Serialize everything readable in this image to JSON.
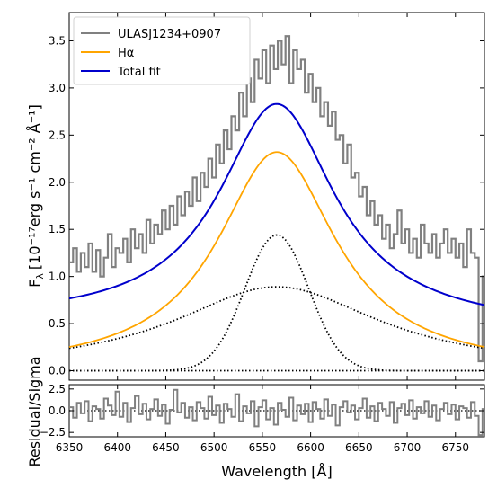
{
  "chart_data": {
    "type": "line",
    "x_range": [
      6350,
      6780
    ],
    "xlabel": "Wavelength [Å]",
    "x_ticks": [
      6350,
      6400,
      6450,
      6500,
      6550,
      6600,
      6650,
      6700,
      6750
    ],
    "main": {
      "ylabel_prefix": "F",
      "ylabel_sub": "λ",
      "ylabel_units": "[10⁻¹⁷erg s⁻¹ cm⁻² Å⁻¹]",
      "ylim": [
        -0.1,
        3.8
      ],
      "y_ticks": [
        0.0,
        0.5,
        1.0,
        1.5,
        2.0,
        2.5,
        3.0,
        3.5
      ],
      "legend_position": "top-left",
      "models": {
        "center": 6565,
        "narrow_gaussian": {
          "amplitude": 1.44,
          "sigma": 33
        },
        "broad_lorentzian": {
          "amplitude": 0.89,
          "hwhm": 130
        },
        "halpha_lorentzian": {
          "amplitude": 2.32,
          "hwhm": 75,
          "baseline": 0.0
        },
        "total_continuum": {
          "at_6350": 0.52,
          "at_6780": 0.45
        }
      },
      "series": [
        {
          "name": "ULASJ1234+0907",
          "color": "#808080",
          "style": "steps",
          "x": [
            6350,
            6354,
            6358,
            6362,
            6366,
            6370,
            6374,
            6378,
            6382,
            6386,
            6390,
            6394,
            6398,
            6402,
            6406,
            6410,
            6414,
            6418,
            6422,
            6426,
            6430,
            6434,
            6438,
            6442,
            6446,
            6450,
            6454,
            6458,
            6462,
            6466,
            6470,
            6474,
            6478,
            6482,
            6486,
            6490,
            6494,
            6498,
            6502,
            6506,
            6510,
            6514,
            6518,
            6522,
            6526,
            6530,
            6534,
            6538,
            6542,
            6546,
            6550,
            6554,
            6558,
            6562,
            6566,
            6570,
            6574,
            6578,
            6582,
            6586,
            6590,
            6594,
            6598,
            6602,
            6606,
            6610,
            6614,
            6618,
            6622,
            6626,
            6630,
            6634,
            6638,
            6642,
            6646,
            6650,
            6654,
            6658,
            6662,
            6666,
            6670,
            6674,
            6678,
            6682,
            6686,
            6690,
            6694,
            6698,
            6702,
            6706,
            6710,
            6714,
            6718,
            6722,
            6726,
            6730,
            6734,
            6738,
            6742,
            6746,
            6750,
            6754,
            6758,
            6762,
            6766,
            6770,
            6774,
            6778
          ],
          "values": [
            1.15,
            1.3,
            1.05,
            1.25,
            1.1,
            1.35,
            1.05,
            1.28,
            1.0,
            1.2,
            1.45,
            1.1,
            1.3,
            1.25,
            1.4,
            1.15,
            1.5,
            1.3,
            1.45,
            1.25,
            1.6,
            1.35,
            1.55,
            1.45,
            1.7,
            1.5,
            1.75,
            1.55,
            1.85,
            1.65,
            1.9,
            1.75,
            2.05,
            1.8,
            2.1,
            1.95,
            2.25,
            2.05,
            2.4,
            2.2,
            2.55,
            2.35,
            2.7,
            2.55,
            2.95,
            2.7,
            3.1,
            2.85,
            3.3,
            3.1,
            3.4,
            3.05,
            3.45,
            3.2,
            3.5,
            3.25,
            3.55,
            3.05,
            3.4,
            3.2,
            3.3,
            2.95,
            3.15,
            2.85,
            3.0,
            2.7,
            2.85,
            2.6,
            2.75,
            2.45,
            2.5,
            2.2,
            2.4,
            2.05,
            2.1,
            1.85,
            1.95,
            1.65,
            1.8,
            1.55,
            1.65,
            1.4,
            1.55,
            1.3,
            1.45,
            1.7,
            1.35,
            1.5,
            1.25,
            1.4,
            1.2,
            1.55,
            1.35,
            1.25,
            1.45,
            1.2,
            1.35,
            1.5,
            1.25,
            1.4,
            1.2,
            1.35,
            1.1,
            1.5,
            1.25,
            1.2,
            0.1,
            1.0
          ]
        },
        {
          "name": "Hα",
          "color": "#FFA500",
          "style": "solid"
        },
        {
          "name": "Total fit",
          "color": "#0000CC",
          "style": "solid"
        },
        {
          "name": "",
          "color": "#000000",
          "style": "dotted"
        }
      ]
    },
    "residual": {
      "ylabel": "Residual/Sigma",
      "ylim": [
        -3.0,
        3.0
      ],
      "y_ticks": [
        -2.5,
        0.0,
        2.5
      ],
      "color": "#808080",
      "values": [
        0.4,
        -0.8,
        0.9,
        -0.3,
        1.1,
        -1.2,
        0.5,
        0.2,
        -0.9,
        1.4,
        0.6,
        -0.5,
        2.2,
        -0.7,
        0.9,
        -1.3,
        0.3,
        1.7,
        -0.4,
        0.8,
        -1.0,
        0.2,
        1.3,
        -0.6,
        0.7,
        -1.5,
        0.1,
        2.4,
        -0.2,
        0.9,
        -0.8,
        0.4,
        -1.1,
        1.0,
        0.3,
        -0.9,
        1.6,
        -0.5,
        0.6,
        -1.4,
        0.8,
        0.2,
        -0.7,
        1.9,
        -1.2,
        0.5,
        -0.3,
        1.1,
        -1.8,
        0.4,
        1.2,
        -1.0,
        0.3,
        -1.6,
        0.9,
        0.1,
        -0.7,
        1.5,
        -1.1,
        0.6,
        -0.4,
        0.8,
        -1.3,
        1.0,
        0.2,
        -0.9,
        1.3,
        -0.6,
        0.7,
        -1.7,
        0.4,
        1.1,
        -0.2,
        0.6,
        -1.0,
        0.3,
        1.4,
        -0.8,
        0.5,
        -1.2,
        0.9,
        0.2,
        -0.6,
        1.0,
        -1.4,
        0.3,
        0.8,
        -0.5,
        1.2,
        -0.9,
        0.4,
        -0.3,
        1.1,
        -0.7,
        0.6,
        -1.1,
        0.2,
        0.9,
        -0.4,
        0.7,
        -1.0,
        0.5,
        0.3,
        -0.8,
        1.0,
        -0.6,
        -2.8,
        0.2
      ]
    }
  }
}
